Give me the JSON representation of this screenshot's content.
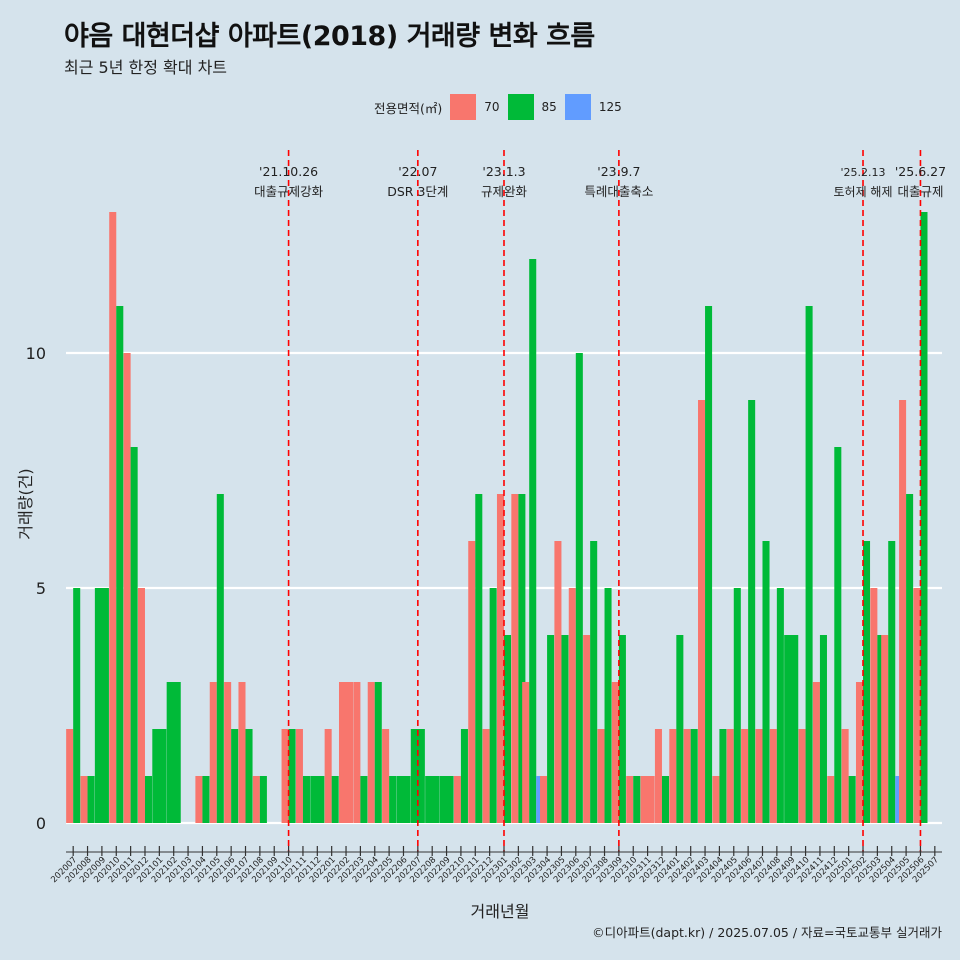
{
  "title": "야음 대현더샵 아파트(2018) 거래량 변화 흐름",
  "subtitle": "최근 5년 한정 확대 차트",
  "caption": "©디아파트(dapt.kr) / 2025.07.05 / 자료=국토교통부 실거래가",
  "legend": {
    "title": "전용면적(㎡)",
    "items": [
      {
        "label": "70",
        "color": "#f8766d"
      },
      {
        "label": "85",
        "color": "#00ba38"
      },
      {
        "label": "125",
        "color": "#619cff"
      }
    ]
  },
  "chart_data": {
    "type": "bar",
    "xlabel": "거래년월",
    "ylabel": "거래량(건)",
    "ylim": [
      0,
      13
    ],
    "yticks": [
      0,
      5,
      10
    ],
    "grid": true,
    "legend_position": "top",
    "categories": [
      "202007",
      "202008",
      "202009",
      "202010",
      "202011",
      "202012",
      "202101",
      "202102",
      "202103",
      "202104",
      "202105",
      "202106",
      "202107",
      "202108",
      "202109",
      "202110",
      "202111",
      "202112",
      "202201",
      "202202",
      "202203",
      "202204",
      "202205",
      "202206",
      "202207",
      "202208",
      "202209",
      "202210",
      "202211",
      "202212",
      "202301",
      "202302",
      "202303",
      "202304",
      "202305",
      "202306",
      "202307",
      "202308",
      "202309",
      "202310",
      "202311",
      "202312",
      "202401",
      "202402",
      "202403",
      "202404",
      "202405",
      "202406",
      "202407",
      "202408",
      "202409",
      "202410",
      "202411",
      "202412",
      "202501",
      "202502",
      "202503",
      "202504",
      "202505",
      "202506",
      "202507"
    ],
    "series": [
      {
        "name": "70",
        "color": "#f8766d",
        "values": [
          2,
          1,
          0,
          13,
          10,
          5,
          0,
          0,
          0,
          1,
          3,
          3,
          3,
          1,
          0,
          2,
          2,
          0,
          2,
          3,
          3,
          3,
          2,
          0,
          0,
          0,
          0,
          1,
          6,
          2,
          7,
          7,
          3,
          1,
          6,
          5,
          4,
          2,
          3,
          1,
          1,
          2,
          2,
          2,
          9,
          1,
          2,
          2,
          2,
          2,
          0,
          2,
          3,
          1,
          2,
          3,
          5,
          4,
          9,
          5,
          0
        ]
      },
      {
        "name": "85",
        "color": "#00ba38",
        "values": [
          5,
          1,
          5,
          11,
          8,
          1,
          2,
          3,
          0,
          1,
          7,
          2,
          2,
          1,
          0,
          2,
          1,
          1,
          1,
          0,
          1,
          3,
          1,
          1,
          2,
          1,
          1,
          2,
          7,
          5,
          4,
          7,
          12,
          4,
          4,
          10,
          6,
          5,
          4,
          1,
          0,
          1,
          4,
          2,
          11,
          2,
          5,
          9,
          6,
          5,
          4,
          11,
          4,
          8,
          1,
          6,
          4,
          6,
          7,
          13,
          0
        ]
      },
      {
        "name": "125",
        "color": "#619cff",
        "values": [
          0,
          0,
          0,
          0,
          0,
          0,
          0,
          0,
          0,
          0,
          0,
          0,
          0,
          0,
          0,
          0,
          0,
          0,
          0,
          0,
          0,
          0,
          0,
          0,
          0,
          0,
          0,
          0,
          0,
          0,
          0,
          0,
          1,
          0,
          0,
          0,
          0,
          0,
          0,
          0,
          0,
          0,
          0,
          0,
          0,
          0,
          0,
          0,
          0,
          0,
          0,
          0,
          0,
          0,
          0,
          0,
          0,
          1,
          0,
          0,
          0
        ]
      }
    ],
    "annotations": [
      {
        "x": "202110",
        "date": "'21.10.26",
        "label": "대출규제강화",
        "color": "#ff0000"
      },
      {
        "x": "202207",
        "date": "'22.07",
        "label": "DSR 3단계",
        "color": "#ff0000"
      },
      {
        "x": "202301",
        "date": "'23.1.3",
        "label": "규제완화",
        "color": "#ff0000"
      },
      {
        "x": "202309",
        "date": "'23.9.7",
        "label": "특례대출축소",
        "color": "#ff0000"
      },
      {
        "x": "202502",
        "date": "'25.2.13",
        "label": "토허제 해제",
        "color": "#ff0000"
      },
      {
        "x": "202506",
        "date": "'25.6.27",
        "label": "대출규제",
        "color": "#ff0000"
      }
    ]
  }
}
